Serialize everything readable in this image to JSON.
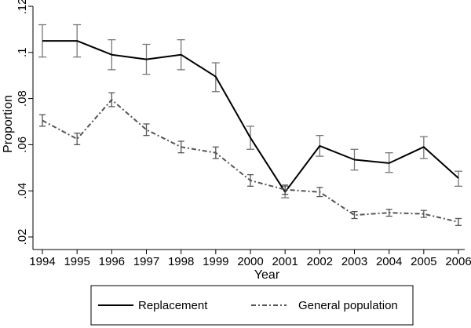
{
  "chart_data": {
    "type": "line",
    "title": "",
    "xlabel": "Year",
    "ylabel": "Proportion",
    "x": [
      1994,
      1995,
      1996,
      1997,
      1998,
      1999,
      2000,
      2001,
      2002,
      2003,
      2004,
      2005,
      2006
    ],
    "xtick_labels": [
      "1994",
      "1995",
      "1996",
      "1997",
      "1998",
      "1999",
      "2000",
      "2001",
      "2002",
      "2003",
      "2004",
      "2005",
      "2006"
    ],
    "ylim": [
      0.02,
      0.12
    ],
    "yticks": [
      0.02,
      0.04,
      0.06,
      0.08,
      0.1,
      0.12
    ],
    "ytick_labels": [
      ".02",
      ".04",
      ".06",
      ".08",
      ".1",
      ".12"
    ],
    "grid": false,
    "legend_position": "bottom",
    "series": [
      {
        "name": "Replacement",
        "color": "#000000",
        "style": "solid",
        "values": [
          0.105,
          0.105,
          0.099,
          0.097,
          0.099,
          0.0895,
          0.063,
          0.0395,
          0.0595,
          0.0535,
          0.052,
          0.059,
          0.0455
        ],
        "ci_low": [
          0.098,
          0.098,
          0.0925,
          0.0905,
          0.0925,
          0.083,
          0.058,
          0.037,
          0.055,
          0.049,
          0.048,
          0.054,
          0.042
        ],
        "ci_high": [
          0.112,
          0.112,
          0.1055,
          0.1035,
          0.1055,
          0.0955,
          0.068,
          0.042,
          0.064,
          0.058,
          0.0565,
          0.0635,
          0.0485
        ]
      },
      {
        "name": "General population",
        "color": "#555555",
        "style": "dash-dot",
        "values": [
          0.0705,
          0.0625,
          0.0795,
          0.0665,
          0.059,
          0.0565,
          0.0445,
          0.0405,
          0.0395,
          0.0295,
          0.0305,
          0.03,
          0.0265
        ],
        "ci_low": [
          0.068,
          0.06,
          0.0765,
          0.064,
          0.0565,
          0.054,
          0.042,
          0.0385,
          0.0375,
          0.028,
          0.029,
          0.0285,
          0.025
        ],
        "ci_high": [
          0.073,
          0.065,
          0.0825,
          0.069,
          0.0615,
          0.059,
          0.047,
          0.0425,
          0.0415,
          0.031,
          0.032,
          0.0315,
          0.028
        ]
      }
    ]
  }
}
